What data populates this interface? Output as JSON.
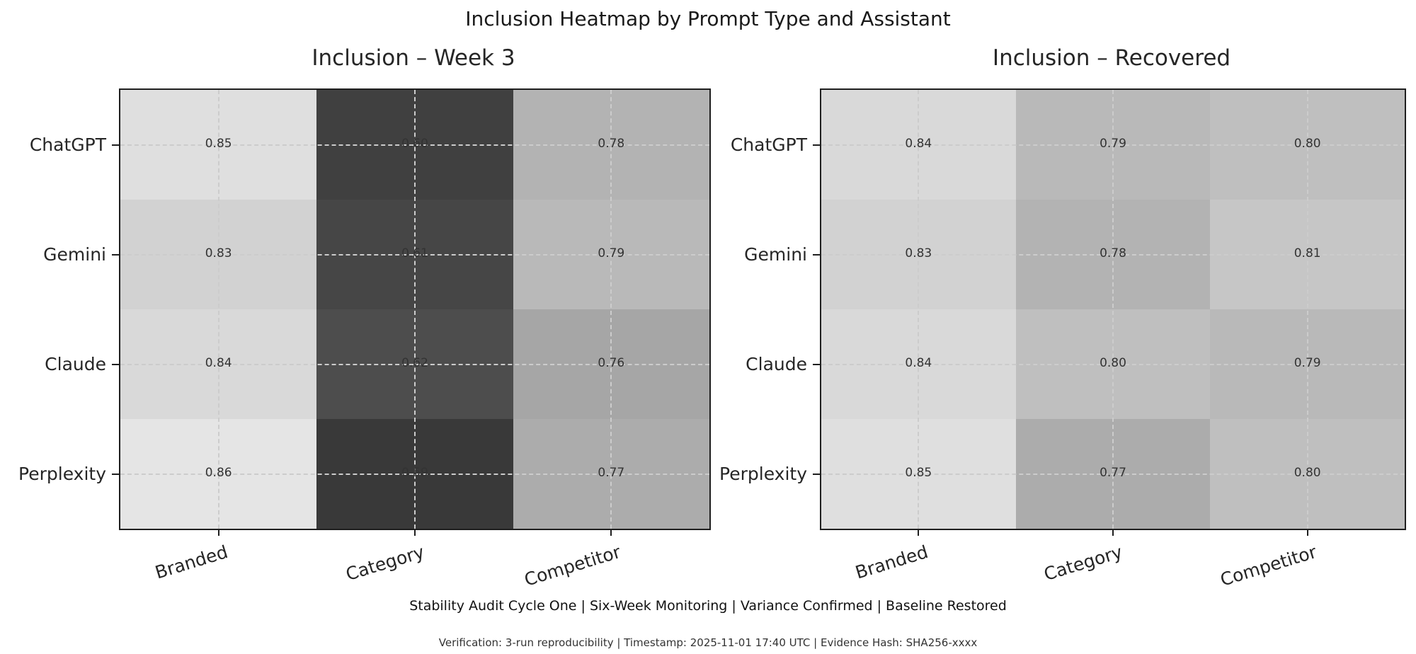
{
  "figure": {
    "suptitle": "Inclusion Heatmap by Prompt Type and Assistant",
    "footer_primary": "Stability Audit Cycle One  |  Six-Week Monitoring  |  Variance Confirmed  |  Baseline Restored",
    "footer_secondary": "Verification: 3-run reproducibility | Timestamp: 2025-11-01 17:40 UTC | Evidence Hash: SHA256-xxxx",
    "background": "#ffffff"
  },
  "colormap": {
    "name": "gray",
    "vmin": 0.5,
    "vmax": 0.9,
    "annotation_color": "#333333",
    "grid_color": "#cccccc",
    "grid_style": "dashed",
    "spine_color": "#1f1f1f"
  },
  "chart_data": [
    {
      "type": "heatmap",
      "title": "Inclusion – Week 3",
      "rows": [
        "ChatGPT",
        "Gemini",
        "Claude",
        "Perplexity"
      ],
      "columns": [
        "Branded",
        "Category",
        "Competitor"
      ],
      "values": [
        [
          0.85,
          0.6,
          0.78
        ],
        [
          0.83,
          0.61,
          0.79
        ],
        [
          0.84,
          0.62,
          0.76
        ],
        [
          0.86,
          0.59,
          0.77
        ]
      ],
      "value_format": "two_decimals",
      "grid": true,
      "legend": false
    },
    {
      "type": "heatmap",
      "title": "Inclusion – Recovered",
      "rows": [
        "ChatGPT",
        "Gemini",
        "Claude",
        "Perplexity"
      ],
      "columns": [
        "Branded",
        "Category",
        "Competitor"
      ],
      "values": [
        [
          0.84,
          0.79,
          0.8
        ],
        [
          0.83,
          0.78,
          0.81
        ],
        [
          0.84,
          0.8,
          0.79
        ],
        [
          0.85,
          0.77,
          0.8
        ]
      ],
      "value_format": "two_decimals",
      "grid": true,
      "legend": false
    }
  ]
}
